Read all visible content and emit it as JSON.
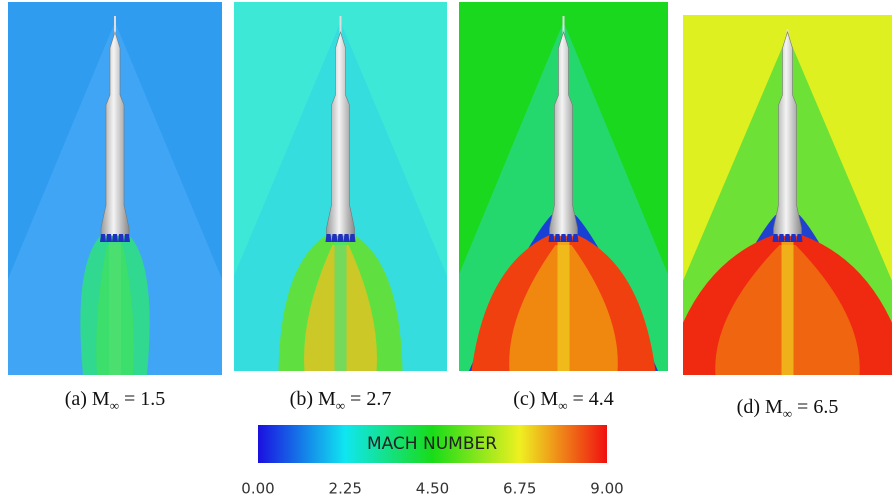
{
  "figure": {
    "panels": [
      {
        "label": "(a) M",
        "sub": "∞",
        "rest": " = 1.5"
      },
      {
        "label": "(b) M",
        "sub": "∞",
        "rest": " = 2.7"
      },
      {
        "label": "(c) M",
        "sub": "∞",
        "rest": " = 4.4"
      },
      {
        "label": "(d) M",
        "sub": "∞",
        "rest": " = 6.5"
      }
    ],
    "colorbar": {
      "title": "MACH NUMBER",
      "range": [
        0,
        9
      ],
      "ticks": [
        {
          "value": 0,
          "label": "0.00"
        },
        {
          "value": 2.25,
          "label": "2.25"
        },
        {
          "value": 4.5,
          "label": "4.50"
        },
        {
          "value": 6.75,
          "label": "6.75"
        },
        {
          "value": 9,
          "label": "9.00"
        }
      ]
    }
  }
}
